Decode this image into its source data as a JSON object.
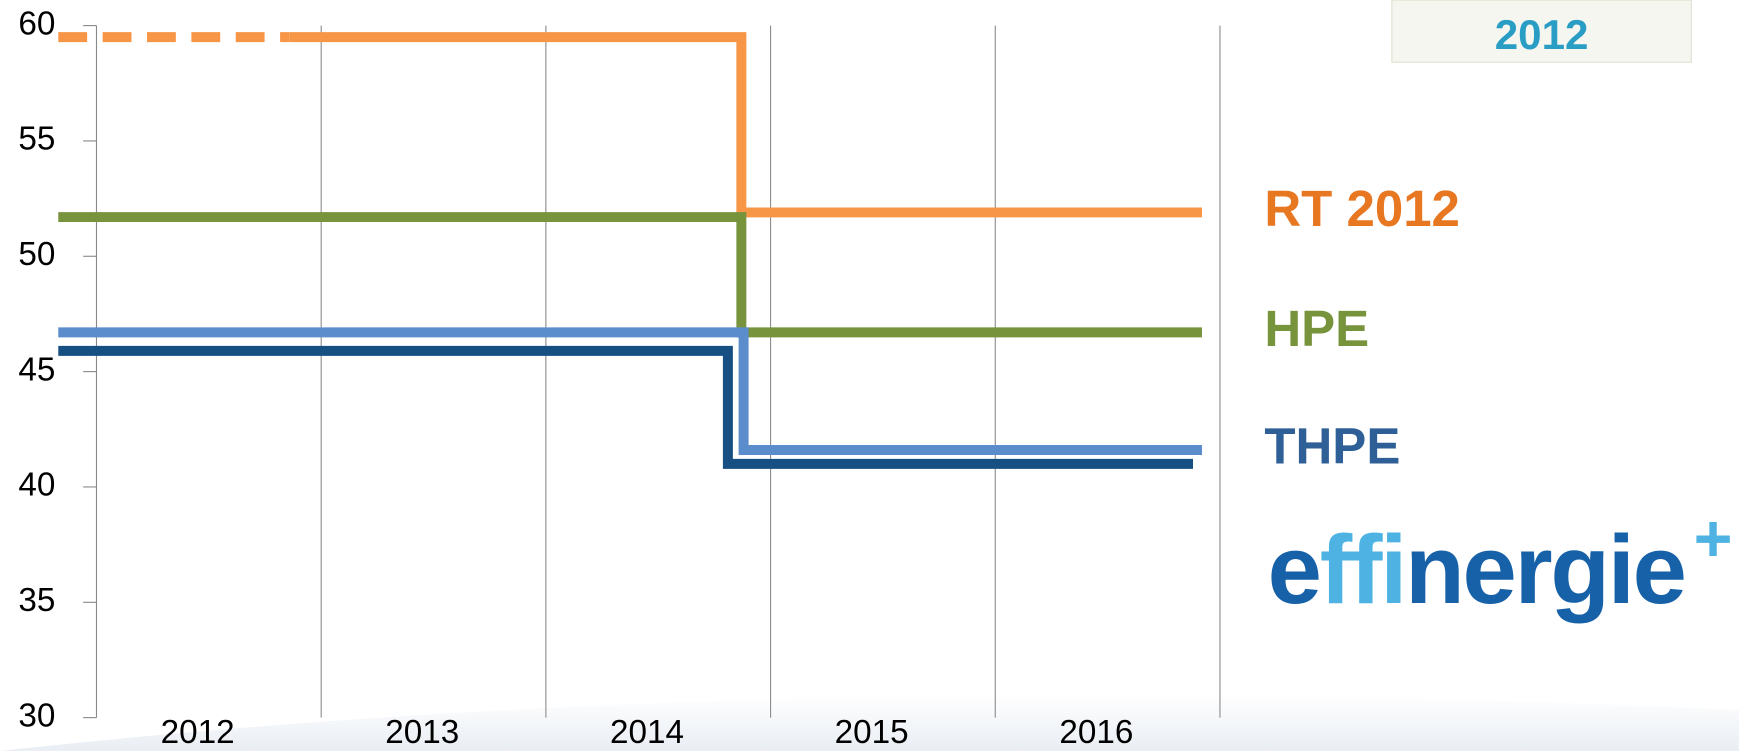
{
  "chart_data": {
    "type": "step",
    "categories": [
      "2012",
      "2013",
      "2014",
      "2015",
      "2016"
    ],
    "xlim": [
      2012,
      2017
    ],
    "ylim": [
      30,
      60
    ],
    "yticks": [
      30,
      35,
      40,
      45,
      50,
      55,
      60
    ],
    "grid": true,
    "series": [
      {
        "color": "#f79646",
        "dashed": true,
        "x": [
          2011.83,
          2012.86
        ],
        "values": [
          59.5,
          59.5
        ]
      },
      {
        "name": "RT 2012",
        "color": "#f79646",
        "label_color": "#e87722",
        "x": [
          2012.86,
          2014.87,
          2016.92
        ],
        "values": [
          59.5,
          51.9,
          51.9
        ]
      },
      {
        "name": "HPE",
        "color": "#77933c",
        "label_color": "#77933c",
        "x": [
          2011.83,
          2014.87,
          2016.92
        ],
        "values": [
          51.7,
          46.7,
          46.7
        ]
      },
      {
        "color": "#174f82",
        "x": [
          2011.83,
          2014.81,
          2016.88
        ],
        "values": [
          45.9,
          41.0,
          41.0
        ]
      },
      {
        "name": "THPE",
        "color": "#5b8ccb",
        "label_color": "#2f5f97",
        "x": [
          2011.83,
          2014.88,
          2016.92
        ],
        "values": [
          46.7,
          41.6,
          41.6
        ]
      }
    ]
  },
  "logos": {
    "badge_year": "2012",
    "effinergie_e": "e",
    "effinergie_ffi": "ffi",
    "effinergie_rest": "nergie",
    "effinergie_plus": "+"
  }
}
